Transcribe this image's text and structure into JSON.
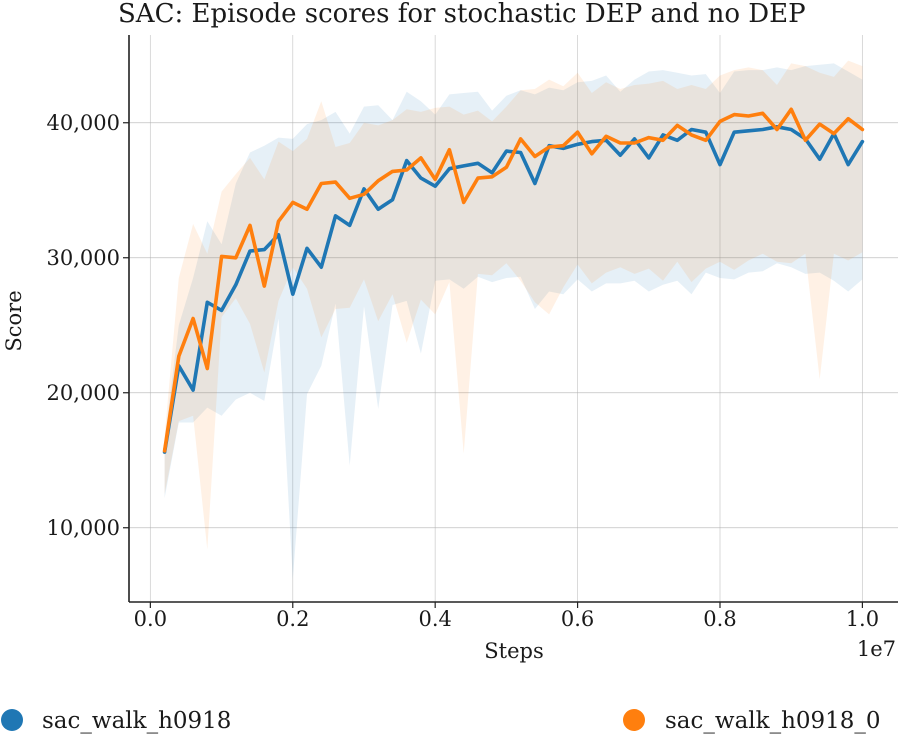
{
  "chart_data": {
    "type": "line",
    "title": "SAC: Episode scores for stochastic DEP and no DEP",
    "xlabel": "Steps",
    "ylabel": "Score",
    "x_multiplier_label": "1e7",
    "xlim": [
      -0.03,
      1.05
    ],
    "ylim": [
      4500,
      46500
    ],
    "grid": true,
    "x_ticks": [
      0.0,
      0.2,
      0.4,
      0.6,
      0.8,
      1.0
    ],
    "x_tick_labels": [
      "0.0",
      "0.2",
      "0.4",
      "0.6",
      "0.8",
      "1.0"
    ],
    "y_ticks": [
      10000,
      20000,
      30000,
      40000
    ],
    "y_tick_labels": [
      "10,000",
      "20,000",
      "30,000",
      "40,000"
    ],
    "legend_position": "bottom",
    "x": [
      0.02,
      0.04,
      0.06,
      0.08,
      0.1,
      0.12,
      0.14,
      0.16,
      0.18,
      0.2,
      0.22,
      0.24,
      0.26,
      0.28,
      0.3,
      0.32,
      0.34,
      0.36,
      0.38,
      0.4,
      0.42,
      0.44,
      0.46,
      0.48,
      0.5,
      0.52,
      0.54,
      0.56,
      0.58,
      0.6,
      0.62,
      0.64,
      0.66,
      0.68,
      0.7,
      0.72,
      0.74,
      0.76,
      0.78,
      0.8,
      0.82,
      0.84,
      0.86,
      0.88,
      0.9,
      0.92,
      0.94,
      0.96,
      0.98,
      1.0
    ],
    "series": [
      {
        "name": "sac_walk_h0918",
        "color": "#1f77b4",
        "values": [
          15600,
          22000,
          20200,
          26700,
          26100,
          28000,
          30500,
          30600,
          31700,
          27300,
          30700,
          29300,
          33100,
          32400,
          35100,
          33600,
          34300,
          37200,
          35900,
          35300,
          36600,
          36800,
          37000,
          36300,
          37900,
          37800,
          35500,
          38300,
          38100,
          38400,
          38600,
          38700,
          37600,
          38800,
          37400,
          39100,
          38700,
          39500,
          39300,
          36900,
          39300,
          39400,
          39500,
          39700,
          39500,
          38800,
          37300,
          39200,
          36900,
          38600
        ],
        "upper": [
          16500,
          25000,
          28500,
          32700,
          31000,
          35500,
          37800,
          38300,
          38900,
          38800,
          39900,
          40200,
          40800,
          39200,
          41200,
          41300,
          40200,
          42300,
          41600,
          40600,
          42100,
          42200,
          42300,
          40900,
          42000,
          42400,
          42100,
          42600,
          42400,
          43000,
          43100,
          43500,
          42300,
          43200,
          43800,
          43900,
          43700,
          43500,
          43600,
          42200,
          43800,
          43900,
          43900,
          44100,
          43900,
          44200,
          44300,
          44400,
          43800,
          43200
        ],
        "lower": [
          12200,
          17800,
          17800,
          18900,
          18300,
          19500,
          20000,
          19400,
          25500,
          6200,
          19900,
          22000,
          26600,
          14600,
          26400,
          18800,
          26500,
          26800,
          22900,
          28300,
          28400,
          27700,
          28600,
          28200,
          28500,
          28600,
          26200,
          27500,
          27300,
          28400,
          27500,
          28100,
          28100,
          28300,
          27500,
          28000,
          28300,
          27300,
          28900,
          28500,
          28400,
          28900,
          29000,
          29600,
          29300,
          28800,
          28900,
          28300,
          27500,
          28400
        ]
      },
      {
        "name": "sac_walk_h0918_0",
        "color": "#ff7f0e",
        "values": [
          15700,
          22700,
          25500,
          21800,
          30100,
          30000,
          32400,
          27900,
          32700,
          34100,
          33600,
          35500,
          35600,
          34400,
          34700,
          35700,
          36400,
          36500,
          37400,
          35800,
          38000,
          34100,
          35900,
          36000,
          36700,
          38800,
          37500,
          38200,
          38300,
          39300,
          37700,
          39000,
          38500,
          38500,
          38900,
          38700,
          39800,
          39100,
          38700,
          40100,
          40600,
          40500,
          40700,
          39500,
          41000,
          38700,
          39900,
          39200,
          40300,
          39500
        ],
        "upper": [
          16800,
          28500,
          32500,
          30300,
          34900,
          36200,
          37400,
          35800,
          38600,
          37900,
          38800,
          41600,
          38200,
          38500,
          40000,
          39800,
          40200,
          41000,
          40800,
          41100,
          41200,
          40600,
          40900,
          40100,
          41200,
          42400,
          42500,
          43200,
          42700,
          43700,
          42200,
          43000,
          42500,
          42800,
          42900,
          43100,
          42500,
          42800,
          42500,
          43500,
          43900,
          44100,
          43900,
          42800,
          44400,
          44200,
          43700,
          43400,
          44600,
          44200
        ],
        "lower": [
          12500,
          17900,
          18300,
          8400,
          25600,
          27000,
          25100,
          21500,
          26800,
          29300,
          27700,
          24100,
          26200,
          26300,
          28400,
          25300,
          27300,
          23700,
          26900,
          25800,
          28200,
          15500,
          28800,
          28700,
          29600,
          28300,
          26700,
          25800,
          27800,
          29500,
          28100,
          28900,
          29300,
          28800,
          29200,
          28300,
          29700,
          28200,
          29200,
          29700,
          29100,
          29800,
          30300,
          29700,
          29600,
          30300,
          21000,
          30300,
          29800,
          30400
        ]
      }
    ]
  }
}
